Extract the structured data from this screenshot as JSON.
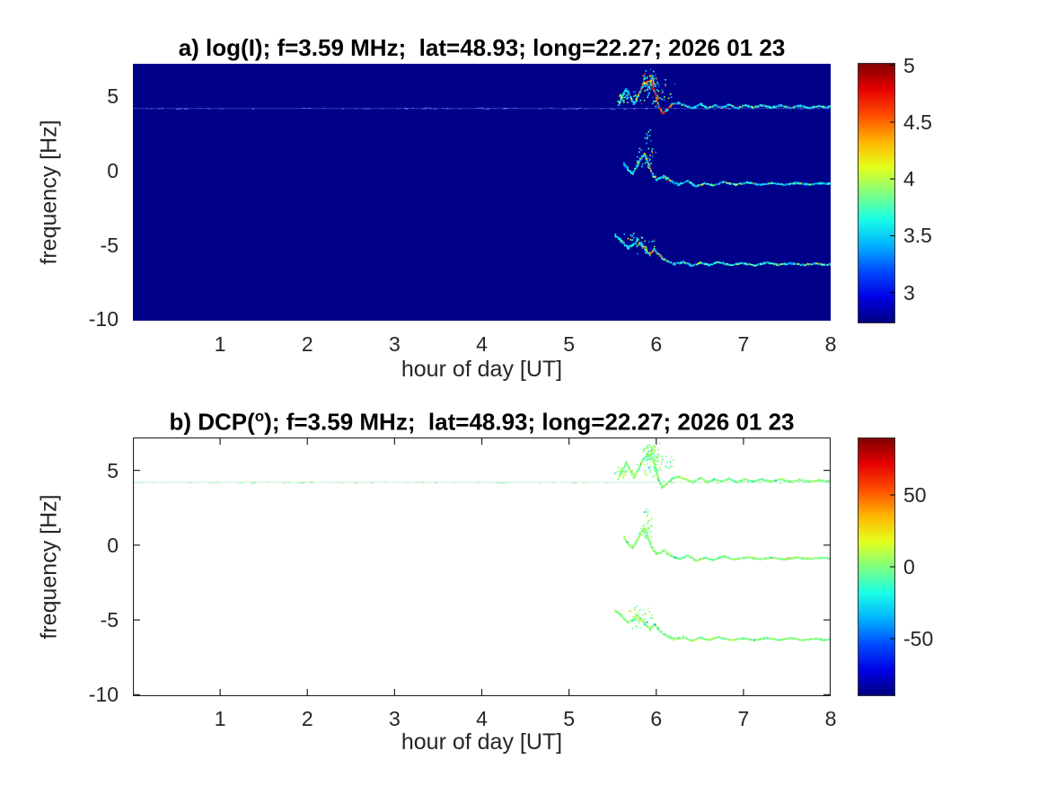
{
  "figure": {
    "background": "#ffffff"
  },
  "colors": {
    "axis_text": "#262626",
    "title_text": "#000000",
    "panel_b_border": "#222222",
    "colorbar_border": "#333333",
    "panel_a_background": "#000089"
  },
  "chart_data": [
    {
      "type": "heatmap",
      "panel_label": "a",
      "title": "a) log(I); f=3.59 MHz;  lat=48.93; long=22.27; 2026 01 23",
      "xlabel": "hour of day [UT]",
      "ylabel": "frequency [Hz]",
      "xlim": [
        0,
        8
      ],
      "ylim": [
        -10.1,
        7.2
      ],
      "xticks": [
        1,
        2,
        3,
        4,
        5,
        6,
        7,
        8
      ],
      "yticks": [
        5,
        0,
        -5,
        -10
      ],
      "grid": false,
      "box": false,
      "bg": "#000089",
      "colormap": "jet",
      "colorbar": {
        "position": "right",
        "ticks": [
          5,
          4.5,
          4,
          3.5,
          3
        ],
        "range": [
          2.73,
          5.02
        ]
      },
      "baseline_line": {
        "freq": 4.2,
        "color": "#3d55c9",
        "dash_color": "#7e97f5"
      },
      "traces": [
        {
          "name": "upper-doppler-trace",
          "points": [
            [
              5.56,
              4.5
            ],
            [
              5.6,
              5.05
            ],
            [
              5.65,
              5.55
            ],
            [
              5.7,
              4.95
            ],
            [
              5.74,
              4.55
            ],
            [
              5.79,
              5.15
            ],
            [
              5.84,
              5.75
            ],
            [
              5.89,
              6.05
            ],
            [
              5.93,
              6.15
            ],
            [
              5.97,
              5.45
            ],
            [
              6.01,
              4.55
            ],
            [
              6.06,
              3.9
            ],
            [
              6.11,
              4.1
            ],
            [
              6.17,
              4.5
            ],
            [
              6.25,
              4.6
            ],
            [
              6.33,
              4.45
            ],
            [
              6.41,
              4.25
            ],
            [
              6.5,
              4.55
            ],
            [
              6.58,
              4.25
            ],
            [
              6.66,
              4.45
            ],
            [
              6.74,
              4.3
            ],
            [
              6.83,
              4.5
            ],
            [
              6.92,
              4.25
            ],
            [
              7.01,
              4.45
            ],
            [
              7.1,
              4.3
            ],
            [
              7.2,
              4.45
            ],
            [
              7.31,
              4.3
            ],
            [
              7.42,
              4.45
            ],
            [
              7.53,
              4.28
            ],
            [
              7.64,
              4.42
            ],
            [
              7.75,
              4.28
            ],
            [
              7.86,
              4.4
            ],
            [
              7.94,
              4.3
            ],
            [
              8.0,
              4.38
            ]
          ],
          "clouds": [
            {
              "x": 5.93,
              "y": 6.1,
              "sx": 0.1,
              "sy": 0.8,
              "n": 70
            },
            {
              "x": 5.97,
              "y": 5.3,
              "sx": 0.27,
              "sy": 1.05,
              "n": 55
            },
            {
              "x": 5.62,
              "y": 4.95,
              "sx": 0.12,
              "sy": 0.45,
              "n": 25
            }
          ]
        },
        {
          "name": "middle-doppler-trace",
          "points": [
            [
              5.62,
              0.55
            ],
            [
              5.67,
              0.15
            ],
            [
              5.72,
              -0.15
            ],
            [
              5.77,
              0.3
            ],
            [
              5.81,
              0.85
            ],
            [
              5.86,
              1.15
            ],
            [
              5.9,
              0.5
            ],
            [
              5.95,
              -0.2
            ],
            [
              6.0,
              -0.55
            ],
            [
              6.08,
              -0.35
            ],
            [
              6.16,
              -0.65
            ],
            [
              6.25,
              -0.9
            ],
            [
              6.35,
              -0.65
            ],
            [
              6.45,
              -1.0
            ],
            [
              6.55,
              -0.8
            ],
            [
              6.65,
              -0.95
            ],
            [
              6.76,
              -0.7
            ],
            [
              6.9,
              -0.9
            ],
            [
              7.04,
              -0.75
            ],
            [
              7.18,
              -0.9
            ],
            [
              7.32,
              -0.78
            ],
            [
              7.46,
              -0.9
            ],
            [
              7.6,
              -0.78
            ],
            [
              7.74,
              -0.88
            ],
            [
              7.88,
              -0.8
            ],
            [
              8.0,
              -0.85
            ]
          ],
          "clouds": [
            {
              "x": 5.88,
              "y": 0.9,
              "sx": 0.13,
              "sy": 0.8,
              "n": 28
            },
            {
              "x": 5.9,
              "y": 2.1,
              "sx": 0.07,
              "sy": 0.7,
              "n": 12
            }
          ]
        },
        {
          "name": "lower-doppler-trace",
          "points": [
            [
              5.52,
              -4.3
            ],
            [
              5.57,
              -4.55
            ],
            [
              5.62,
              -4.85
            ],
            [
              5.67,
              -5.15
            ],
            [
              5.72,
              -5.0
            ],
            [
              5.77,
              -4.65
            ],
            [
              5.82,
              -4.95
            ],
            [
              5.87,
              -5.3
            ],
            [
              5.92,
              -5.6
            ],
            [
              5.97,
              -5.25
            ],
            [
              6.02,
              -5.6
            ],
            [
              6.07,
              -5.85
            ],
            [
              6.12,
              -6.05
            ],
            [
              6.2,
              -6.25
            ],
            [
              6.3,
              -6.1
            ],
            [
              6.4,
              -6.35
            ],
            [
              6.5,
              -6.15
            ],
            [
              6.6,
              -6.3
            ],
            [
              6.7,
              -6.1
            ],
            [
              6.84,
              -6.3
            ],
            [
              6.98,
              -6.18
            ],
            [
              7.12,
              -6.32
            ],
            [
              7.26,
              -6.15
            ],
            [
              7.4,
              -6.3
            ],
            [
              7.54,
              -6.18
            ],
            [
              7.68,
              -6.3
            ],
            [
              7.82,
              -6.2
            ],
            [
              7.92,
              -6.3
            ],
            [
              8.0,
              -6.25
            ]
          ],
          "clouds": [
            {
              "x": 5.84,
              "y": -5.0,
              "sx": 0.15,
              "sy": 0.65,
              "n": 26
            },
            {
              "x": 5.73,
              "y": -4.35,
              "sx": 0.22,
              "sy": 0.4,
              "n": 14
            }
          ]
        }
      ]
    },
    {
      "type": "heatmap",
      "panel_label": "b",
      "title": "b) DCP(o); f=3.59 MHz;  lat=48.93; long=22.27; 2026 01 23",
      "title_pre": "b) DCP(",
      "title_sup": "o",
      "title_post": "); f=3.59 MHz;  lat=48.93; long=22.27; 2026 01 23",
      "xlabel": "hour of day [UT]",
      "ylabel": "frequency [Hz]",
      "xlim": [
        0,
        8
      ],
      "ylim": [
        -10.1,
        7.2
      ],
      "xticks": [
        1,
        2,
        3,
        4,
        5,
        6,
        7,
        8
      ],
      "yticks": [
        5,
        0,
        -5,
        -10
      ],
      "grid": false,
      "box": true,
      "bg": "#ffffff",
      "colormap": "jet",
      "colorbar": {
        "position": "right",
        "ticks": [
          50,
          0,
          -50
        ],
        "range": [
          -90,
          90
        ]
      },
      "baseline_line": {
        "freq": 4.2,
        "color": "#b9eec8",
        "dash_color": "#86e8a0"
      },
      "traces_ref": 0
    }
  ]
}
